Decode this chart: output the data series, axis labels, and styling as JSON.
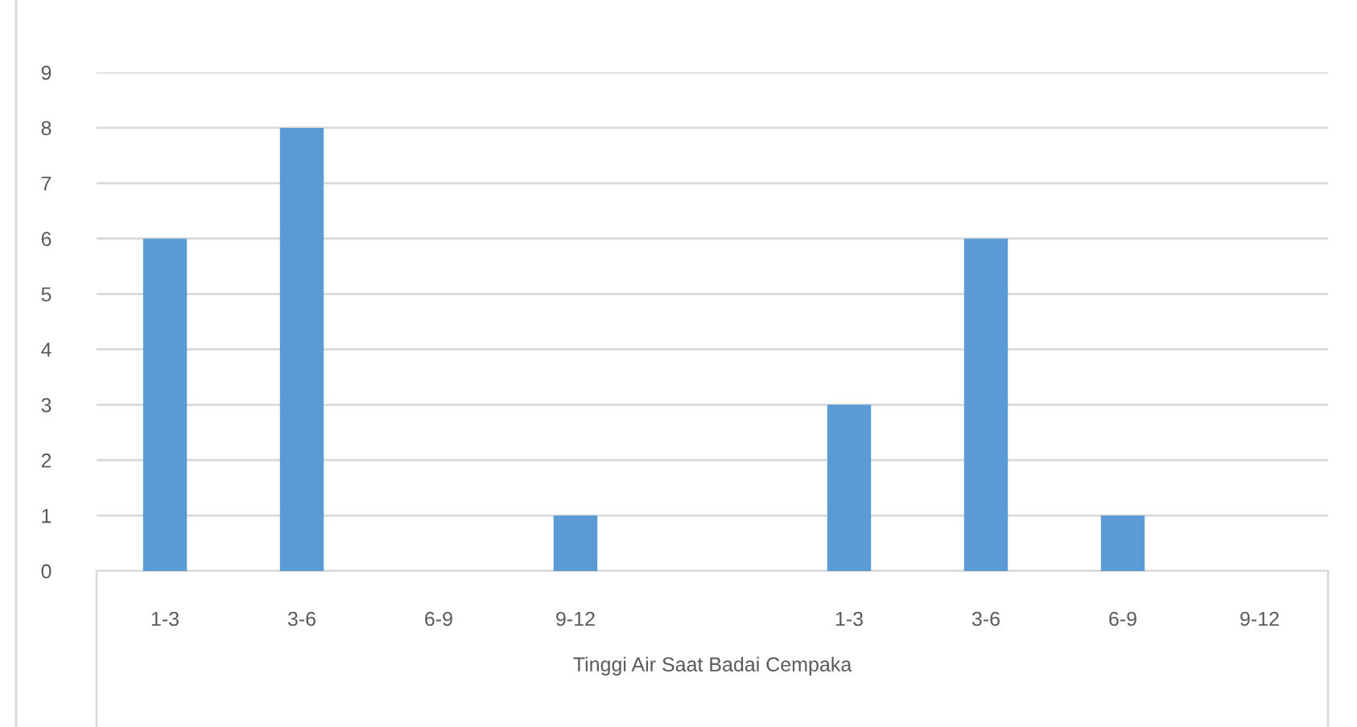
{
  "chart_data": {
    "type": "bar",
    "xlabel": "Tinggi Air Saat Badai Cempaka",
    "categories": [
      "1-3",
      "3-6",
      "6-9",
      "9-12",
      null,
      "1-3",
      "3-6",
      "6-9",
      "9-12"
    ],
    "values": [
      6,
      8,
      0,
      1,
      null,
      3,
      6,
      1,
      0
    ],
    "color": "#5b9bd5",
    "ylim": [
      0,
      9
    ],
    "yticks": [
      0,
      1,
      2,
      3,
      4,
      5,
      6,
      7,
      8,
      9
    ],
    "grid": "y",
    "legend": false
  }
}
